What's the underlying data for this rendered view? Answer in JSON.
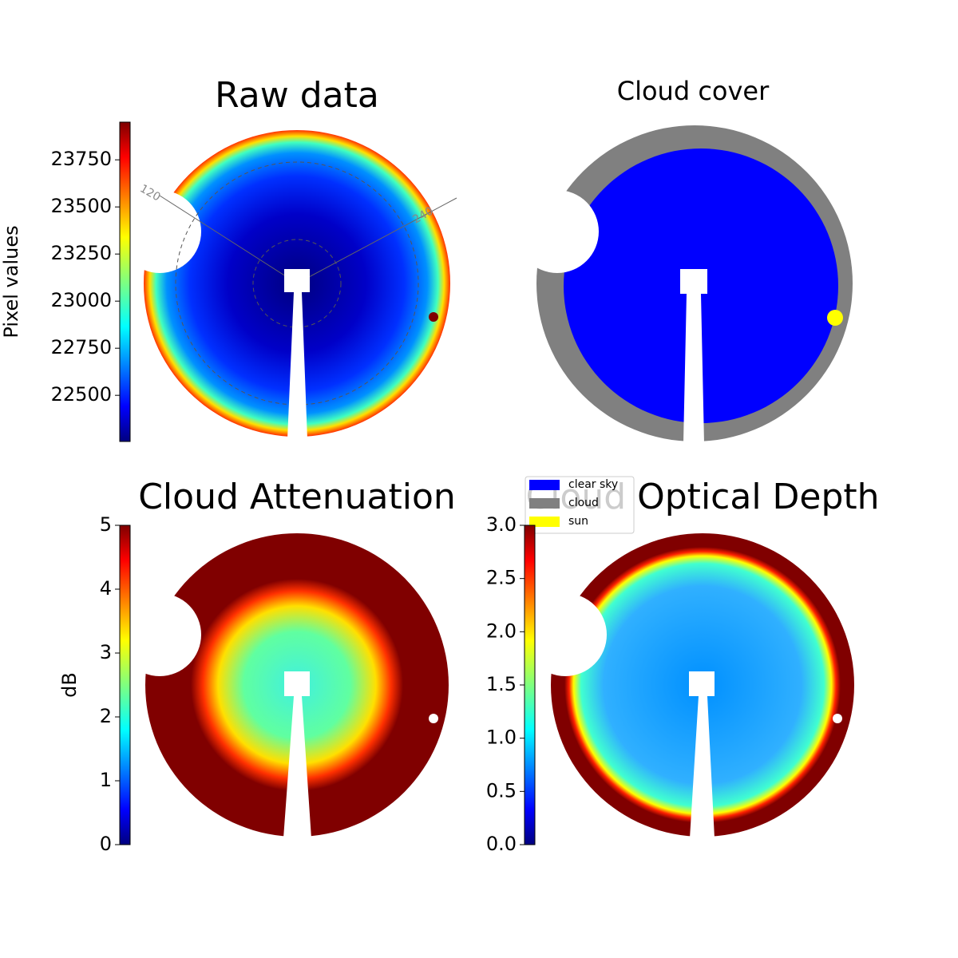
{
  "chart_data": [
    {
      "type": "image",
      "title": "Raw data",
      "colorbar": {
        "label": "Pixel values",
        "lim": [
          22255,
          23950
        ],
        "ticks": [
          22500,
          22750,
          23000,
          23250,
          23500,
          23750
        ]
      },
      "annotations": [
        "120",
        "240"
      ]
    },
    {
      "type": "image",
      "title": "Cloud cover",
      "legend": [
        {
          "name": "clear sky",
          "color": "#0000ff"
        },
        {
          "name": "cloud",
          "color": "#808080"
        },
        {
          "name": "sun",
          "color": "#ffff00"
        }
      ]
    },
    {
      "type": "image",
      "title": "Cloud Attenuation",
      "colorbar": {
        "label": "dB",
        "lim": [
          0,
          5
        ],
        "ticks": [
          0,
          1,
          2,
          3,
          4,
          5
        ]
      }
    },
    {
      "type": "image",
      "title": "Cloud Optical Depth",
      "colorbar": {
        "lim": [
          0,
          3
        ],
        "ticks": [
          {
            "value": 0,
            "label": "0.0"
          },
          {
            "value": 0.5,
            "label": "0.5"
          },
          {
            "value": 1,
            "label": "1.0"
          },
          {
            "value": 1.5,
            "label": "1.5"
          },
          {
            "value": 2,
            "label": "2.0"
          },
          {
            "value": 2.5,
            "label": "2.5"
          },
          {
            "value": 3,
            "label": "3.0"
          }
        ]
      }
    }
  ]
}
